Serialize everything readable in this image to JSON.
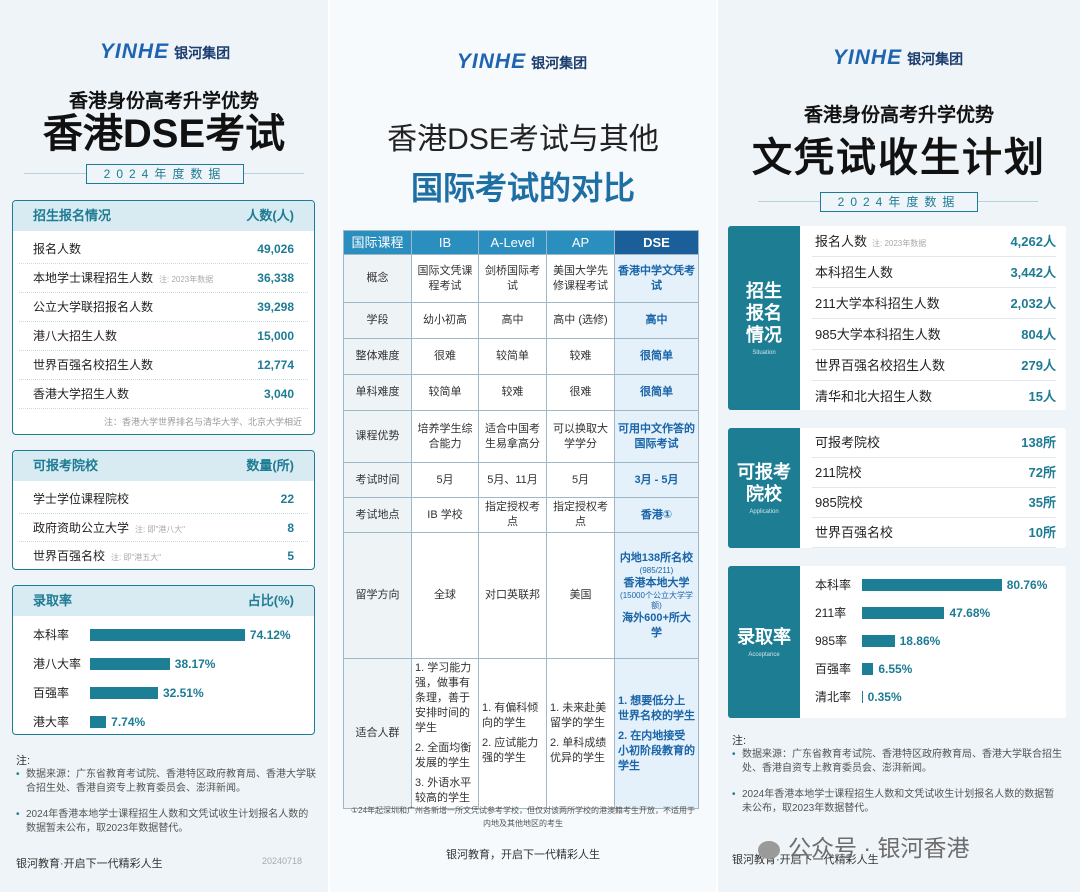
{
  "panels": [
    {
      "logo": {
        "brand": "YINHE",
        "name": "银河集团"
      },
      "subtitle": "香港身份高考升学优势",
      "title": "香港DSE考试",
      "year": "2024年度数据",
      "sections": [
        {
          "header": [
            "招生报名情况",
            "人数(人)"
          ],
          "rows": [
            {
              "label": "报名人数",
              "value": "49,026"
            },
            {
              "label": "本地学士课程招生人数",
              "note": "注: 2023年数据",
              "value": "36,338"
            },
            {
              "label": "公立大学联招报名人数",
              "value": "39,298"
            },
            {
              "label": "港八大招生人数",
              "value": "15,000"
            },
            {
              "label": "世界百强名校招生人数",
              "value": "12,774"
            },
            {
              "label": "香港大学招生人数",
              "value": "3,040"
            }
          ],
          "note": "注：香港大学世界排名与清华大学、北京大学相近"
        },
        {
          "header": [
            "可报考院校",
            "数量(所)"
          ],
          "rows": [
            {
              "label": "学士学位课程院校",
              "value": "22"
            },
            {
              "label": "政府资助公立大学",
              "note": "注: 即\"港八大\"",
              "value": "8"
            },
            {
              "label": "世界百强名校",
              "note": "注: 即\"港五大\"",
              "value": "5"
            }
          ]
        }
      ],
      "notes": {
        "title": "注:",
        "items": [
          "数据来源：广东省教育考试院、香港特区政府教育局、香港大学联合招生处、香港自资专上教育委员会、澎湃新闻。",
          "2024年香港本地学士课程招生人数和文凭试收生计划报名人数的数据暂未公布，取2023年数据替代。"
        ]
      },
      "footer": "银河教育·开启下一代精彩人生",
      "date": "20240718"
    },
    {
      "logo": {
        "brand": "YINHE",
        "name": "银河集团"
      },
      "title_lines": [
        "香港DSE考试与其他",
        "国际考试的对比"
      ],
      "table": {
        "header": [
          "国际课程",
          "IB",
          "A-Level",
          "AP",
          "DSE"
        ],
        "rows": [
          [
            "概念",
            "国际文凭课程考试",
            "剑桥国际考试",
            "美国大学先修课程考试",
            "香港中学文凭考试"
          ],
          [
            "学段",
            "幼小初高",
            "高中",
            "高中 (选修)",
            "高中"
          ],
          [
            "整体难度",
            "很难",
            "较简单",
            "较难",
            "很简单"
          ],
          [
            "单科难度",
            "较简单",
            "较难",
            "很难",
            "很简单"
          ],
          [
            "课程优势",
            "培养学生综合能力",
            "适合中国考生易拿高分",
            "可以换取大学学分",
            "可用中文作答的国际考试"
          ],
          [
            "考试时间",
            "5月",
            "5月、11月",
            "5月",
            "3月 - 5月"
          ],
          [
            "考试地点",
            "IB 学校",
            "指定授权考点",
            "指定授权考点",
            "香港①"
          ],
          [
            "留学方向",
            "全球",
            "对口英联邦",
            "美国",
            [
              "内地138所名校",
              "(985/211)",
              "香港本地大学",
              "(15000个公立大学学额)",
              "海外600+所大学"
            ]
          ],
          [
            "适合人群",
            [
              "1. 学习能力强，做事有条理，善于安排时间的学生",
              "2. 全面均衡发展的学生",
              "3. 外语水平较高的学生"
            ],
            [
              "1. 有偏科倾向的学生",
              "2. 应试能力强的学生"
            ],
            [
              "1. 未来赴美留学的学生",
              "2. 单科成绩优异的学生"
            ],
            [
              "1. 想要低分上世界名校的学生",
              "2. 在内地接受小初阶段教育的学生"
            ]
          ]
        ]
      },
      "footnote": "①24年起深圳和广州各新增一所文凭试参考学校，但仅对该两所学校的港澳籍考生开放，不适用于内地及其他地区的考生",
      "footer": "银河教育，开启下一代精彩人生"
    },
    {
      "logo": {
        "brand": "YINHE",
        "name": "银河集团"
      },
      "subtitle": "香港身份高考升学优势",
      "title": "文凭试收生计划",
      "year": "2024年度数据",
      "sections": [
        {
          "label": "招生报名情况",
          "label_en": "Situation",
          "rows": [
            {
              "label": "报名人数",
              "note": "注: 2023年数据",
              "value": "4,262人"
            },
            {
              "label": "本科招生人数",
              "value": "3,442人"
            },
            {
              "label": "211大学本科招生人数",
              "value": "2,032人"
            },
            {
              "label": "985大学本科招生人数",
              "value": "804人"
            },
            {
              "label": "世界百强名校招生人数",
              "value": "279人"
            },
            {
              "label": "清华和北大招生人数",
              "value": "15人"
            }
          ]
        },
        {
          "label": "可报考院校",
          "label_en": "Application",
          "rows": [
            {
              "label": "可报考院校",
              "value": "138所"
            },
            {
              "label": "211院校",
              "value": "72所"
            },
            {
              "label": "985院校",
              "value": "35所"
            },
            {
              "label": "世界百强名校",
              "value": "10所"
            }
          ]
        }
      ],
      "notes": {
        "title": "注:",
        "items": [
          "数据来源：广东省教育考试院、香港特区政府教育局、香港大学联合招生处、香港自资专上教育委员会、澎湃新闻。",
          "2024年香港本地学士课程招生人数和文凭试收生计划报名人数的数据暂未公布，取2023年数据替代。"
        ]
      },
      "footer": "银河教育·开启下一代精彩人生",
      "watermark": "公众号 · 银河香港"
    }
  ],
  "chart_data": [
    {
      "type": "bar",
      "orientation": "horizontal",
      "title": "录取率",
      "value_header": "占比(%)",
      "categories": [
        "本科率",
        "港八大率",
        "百强率",
        "港大率"
      ],
      "values": [
        74.12,
        38.17,
        32.51,
        7.74
      ],
      "value_labels": [
        "74.12%",
        "38.17%",
        "32.51%",
        "7.74%"
      ],
      "color": "#1d7f95",
      "xlim": [
        0,
        100
      ]
    },
    {
      "type": "bar",
      "orientation": "horizontal",
      "title": "录取率",
      "subtitle": "Acceptance",
      "categories": [
        "本科率",
        "211率",
        "985率",
        "百强率",
        "清北率"
      ],
      "values": [
        80.76,
        47.68,
        18.86,
        6.55,
        0.35
      ],
      "value_labels": [
        "80.76%",
        "47.68%",
        "18.86%",
        "6.55%",
        "0.35%"
      ],
      "color": "#1d7f95",
      "xlim": [
        0,
        100
      ]
    }
  ]
}
